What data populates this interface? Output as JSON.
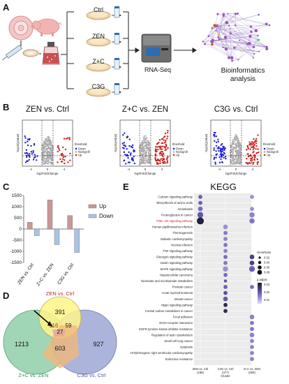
{
  "panels": {
    "a": "A",
    "b": "B",
    "c": "C",
    "d": "D",
    "e": "E"
  },
  "workflow": {
    "groups": [
      "Ctrl",
      "ZEN",
      "Z+C",
      "C3G"
    ],
    "rnaseq": "RNA-Seq",
    "bioinfo_line1": "Bioinformatics",
    "bioinfo_line2": "analysis"
  },
  "volcano": {
    "titles": [
      "ZEN vs. Ctrl",
      "Z+C vs. ZEN",
      "C3G vs. Ctrl"
    ],
    "xlabel": "log2FoldChange",
    "ylabel": "-log10(pvalue)",
    "legend_title": "threshold",
    "legend_items": [
      "Down",
      "NoSignifi",
      "Up"
    ],
    "x_ticks": [
      "-4",
      "0",
      "4"
    ],
    "colors": {
      "down": "#1f1fd6",
      "nosig": "#aaaaaa",
      "up": "#cc2222"
    }
  },
  "chart_data": {
    "type": "bar",
    "categories": [
      "ZEN vs. Ctrl",
      "Z+C vs. ZEN",
      "C3G vs. Ctrl"
    ],
    "series": [
      {
        "name": "Up",
        "values": [
          300,
          1300,
          600
        ],
        "color": "#c99896"
      },
      {
        "name": "Down",
        "values": [
          -300,
          -700,
          -1050
        ],
        "color": "#a9c4e6"
      }
    ],
    "yticks": [
      "1500",
      "1000",
      "500",
      "0",
      "-500",
      "-1000",
      "-1500"
    ],
    "ylim": [
      -1500,
      1500
    ]
  },
  "venn": {
    "labels": [
      "ZEN vs. Ctrl",
      "Z+C vs. ZEN",
      "C3G vs. Ctrl"
    ],
    "regions": {
      "zen_only": "391",
      "zc_only": "1213",
      "c3g_only": "927",
      "zen_zc": "116",
      "zen_c3g": "59",
      "zc_c3g": "603",
      "all": "27"
    }
  },
  "kegg": {
    "title": "KEGG",
    "pathways": [
      "Calcium signaling pathway",
      "Biosynthesis of amino acids",
      "Amoebiasis",
      "Proteoglycans in cancer",
      "PI3K−Akt signaling pathway",
      "Human papillomavirus infection",
      "Thermogenesis",
      "Diabetic cardiomyopathy",
      "Yersinia infection",
      "TNF signaling pathway",
      "Glucagon signaling pathway",
      "Insulin signaling pathway",
      "MAPK signaling pathway",
      "Hepatocellular carcinoma",
      "Nicotinate and nicotinamide metabolism",
      "Prostate cancer",
      "Acute myeloid leukemia",
      "Breast cancer",
      "Hippo signaling pathway",
      "Central carbon metabolism in cancer",
      "Focal adhesion",
      "ECM−receptor interaction",
      "EGFR tyrosine kinase inhibitor resistance",
      "Regulation of actin cytoskeleton",
      "Small cell lung cancer",
      "Apoptosis",
      "Arrhythmogenic right ventricular cardiomyopathy",
      "Endocrine resistance"
    ],
    "highlight_pathway": "PI3K−Akt signaling pathway",
    "columns": [
      {
        "name": "ZEN vs. Ctrl",
        "n": "(189)"
      },
      {
        "name": "C3G vs. Ctrl",
        "n": "(477)"
      },
      {
        "name": "Z+C vs. ZEN",
        "n": "(606)"
      }
    ],
    "xlabel": "Cluster",
    "dots": [
      [
        0,
        0,
        0.02,
        0.5
      ],
      [
        0,
        1,
        0.02,
        0.5
      ],
      [
        0,
        2,
        0.025,
        0.45
      ],
      [
        0,
        3,
        0.035,
        0.55
      ],
      [
        0,
        4,
        0.045,
        0.95
      ],
      [
        1,
        5,
        0.025,
        0.3
      ],
      [
        1,
        6,
        0.02,
        0.4
      ],
      [
        1,
        7,
        0.02,
        0.35
      ],
      [
        1,
        8,
        0.02,
        0.4
      ],
      [
        1,
        9,
        0.02,
        0.35
      ],
      [
        1,
        10,
        0.02,
        0.45
      ],
      [
        1,
        11,
        0.02,
        0.4
      ],
      [
        1,
        12,
        0.03,
        0.3
      ],
      [
        1,
        13,
        0.02,
        0.45
      ],
      [
        1,
        14,
        0.012,
        0.6
      ],
      [
        1,
        15,
        0.02,
        0.5
      ],
      [
        1,
        16,
        0.02,
        0.6
      ],
      [
        1,
        17,
        0.025,
        0.55
      ],
      [
        1,
        18,
        0.02,
        0.9
      ],
      [
        1,
        19,
        0.02,
        0.85
      ],
      [
        2,
        0,
        0.02,
        0.3
      ],
      [
        2,
        2,
        0.02,
        0.3
      ],
      [
        2,
        3,
        0.03,
        0.35
      ],
      [
        2,
        4,
        0.03,
        0.4
      ],
      [
        2,
        10,
        0.025,
        0.7
      ],
      [
        2,
        11,
        0.025,
        0.7
      ],
      [
        2,
        12,
        0.035,
        0.5
      ],
      [
        2,
        15,
        0.02,
        0.45
      ],
      [
        2,
        20,
        0.025,
        0.35
      ],
      [
        2,
        21,
        0.02,
        0.4
      ],
      [
        2,
        22,
        0.02,
        0.4
      ],
      [
        2,
        23,
        0.025,
        0.35
      ],
      [
        2,
        24,
        0.02,
        0.35
      ],
      [
        2,
        25,
        0.02,
        0.35
      ],
      [
        2,
        26,
        0.02,
        0.35
      ],
      [
        2,
        27,
        0.02,
        0.35
      ]
    ],
    "size_legend": {
      "title": "GeneRatio",
      "items": [
        "0.02",
        "0.04",
        "0.06",
        "0.08"
      ]
    },
    "color_legend": {
      "title": "p.adjust",
      "items": [
        "0.03",
        "0.02",
        "0.01"
      ]
    }
  }
}
